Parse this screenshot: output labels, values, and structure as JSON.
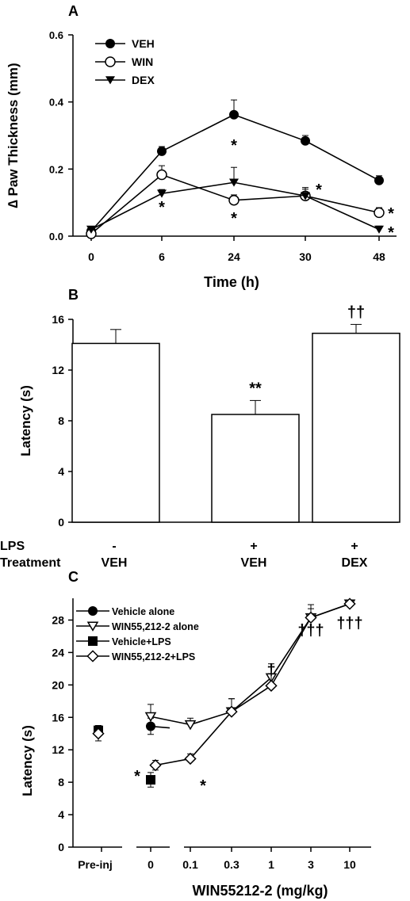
{
  "chart_data": [
    {
      "panel": "A",
      "type": "line",
      "xlabel": "Time (h)",
      "ylabel": "∆ Paw Thickness (mm)",
      "categories": [
        "0",
        "6",
        "24",
        "30",
        "48"
      ],
      "ylim": [
        0.0,
        0.6
      ],
      "yticks": [
        "0.0",
        "0.2",
        "0.4",
        "0.6"
      ],
      "legend_position": "top-left",
      "series": [
        {
          "name": "VEH",
          "marker": "circle-filled",
          "values": [
            0.015,
            0.253,
            0.362,
            0.284,
            0.166
          ],
          "errors": [
            0.008,
            0.014,
            0.044,
            0.016,
            0.014
          ]
        },
        {
          "name": "WIN",
          "marker": "circle-open",
          "values": [
            0.007,
            0.183,
            0.107,
            0.12,
            0.07
          ],
          "errors": [
            0.006,
            0.027,
            0.016,
            0.02,
            0.015
          ]
        },
        {
          "name": "DEX",
          "marker": "triangle-down-filled",
          "values": [
            0.02,
            0.127,
            0.16,
            0.12,
            0.02
          ],
          "errors": [
            0.006,
            0.012,
            0.045,
            0.025,
            0.01
          ]
        }
      ],
      "annotations": [
        {
          "text": "*",
          "x": "6",
          "place": "below"
        },
        {
          "text": "*",
          "x": "24",
          "place": "above"
        },
        {
          "text": "*",
          "x": "24",
          "place": "below"
        },
        {
          "text": "*",
          "x": "30",
          "place": "right"
        },
        {
          "text": "*",
          "x": "48",
          "place": "right-upper"
        },
        {
          "text": "*",
          "x": "48",
          "place": "right-lower"
        }
      ]
    },
    {
      "panel": "B",
      "type": "bar",
      "ylabel": "Latency (s)",
      "categories": [
        "VEH",
        "VEH",
        "DEX"
      ],
      "ylim": [
        0,
        16
      ],
      "yticks": [
        "0",
        "4",
        "8",
        "12",
        "16"
      ],
      "values": [
        14.1,
        8.5,
        14.9
      ],
      "errors": [
        1.1,
        1.1,
        0.7
      ],
      "bar_labels": [
        "",
        "**",
        "††"
      ],
      "condition_rows": [
        {
          "label": "LPS",
          "values": [
            "-",
            "+",
            "+"
          ]
        },
        {
          "label": "Treatment",
          "values": [
            "VEH",
            "VEH",
            "DEX"
          ]
        }
      ]
    },
    {
      "panel": "C",
      "type": "line",
      "xlabel": "WIN55212-2 (mg/kg)",
      "ylabel": "Latency (s)",
      "categories": [
        "Pre-inj",
        "0",
        "0.1",
        "0.3",
        "1",
        "3",
        "10"
      ],
      "ylim": [
        0,
        30
      ],
      "yticks": [
        "0",
        "4",
        "8",
        "12",
        "16",
        "20",
        "24",
        "28"
      ],
      "legend_position": "top-left",
      "series": [
        {
          "name": "Vehicle alone",
          "marker": "circle-filled",
          "values": [
            14.4,
            14.9,
            null,
            null,
            null,
            null,
            null
          ],
          "errors": [
            0.6,
            1.0,
            null,
            null,
            null,
            null,
            null
          ]
        },
        {
          "name": "WIN55,212-2 alone",
          "marker": "triangle-down-open",
          "values": [
            null,
            16.1,
            15.1,
            16.7,
            20.9,
            28.3,
            30.0
          ],
          "errors": [
            null,
            1.5,
            0.8,
            1.6,
            1.7,
            1.1,
            0.3
          ]
        },
        {
          "name": "Vehicle+LPS",
          "marker": "square-filled",
          "values": [
            14.4,
            8.3,
            null,
            null,
            null,
            null,
            null
          ],
          "errors": [
            0.6,
            0.9,
            null,
            null,
            null,
            null,
            null
          ]
        },
        {
          "name": "WIN55,212-2+LPS",
          "marker": "diamond-open",
          "values": [
            14.0,
            10.1,
            10.9,
            16.7,
            19.9,
            28.3,
            30.0
          ],
          "errors": [
            0.9,
            0.6,
            0.6,
            1.6,
            1.5,
            1.6,
            0.3
          ]
        }
      ],
      "annotations": [
        {
          "text": "*",
          "x": "0",
          "place": "left"
        },
        {
          "text": "*",
          "x": "0.1",
          "place": "right"
        },
        {
          "text": "†",
          "x": "1",
          "place": "above"
        },
        {
          "text": "†††",
          "x": "3",
          "place": "above"
        },
        {
          "text": "†††",
          "x": "10",
          "place": "above"
        }
      ]
    }
  ],
  "panel_letters": [
    "A",
    "B",
    "C"
  ],
  "colors": {
    "ink": "#000000",
    "background": "#ffffff"
  }
}
